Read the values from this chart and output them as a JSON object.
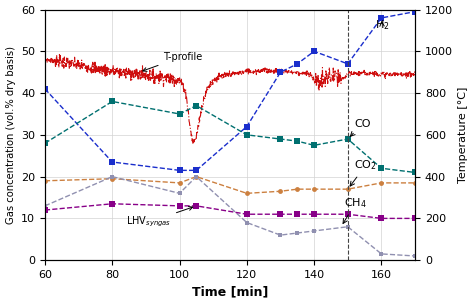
{
  "xlim": [
    60,
    170
  ],
  "ylim_left": [
    0,
    60
  ],
  "ylim_right": [
    0,
    1200
  ],
  "xlabel": "Time [min]",
  "ylabel_left": "Gas concentration (vol.% dry basis)",
  "ylabel_right": "Temperature [°C]",
  "xticks": [
    60,
    80,
    100,
    120,
    140,
    160
  ],
  "yticks_left": [
    0,
    10,
    20,
    30,
    40,
    50,
    60
  ],
  "yticks_right": [
    0,
    200,
    400,
    600,
    800,
    1000,
    1200
  ],
  "H2_x": [
    60,
    80,
    100,
    105,
    120,
    130,
    135,
    140,
    150,
    160,
    170
  ],
  "H2_y": [
    41,
    23.5,
    21.5,
    21.5,
    32,
    45,
    47,
    50,
    47,
    58,
    59.5
  ],
  "H2_color": "#1a2ecc",
  "CO_x": [
    60,
    80,
    100,
    105,
    120,
    130,
    135,
    140,
    150,
    160,
    170
  ],
  "CO_y": [
    28,
    38,
    35,
    37,
    30,
    29,
    28.5,
    27.5,
    29,
    22,
    21
  ],
  "CO_color": "#007070",
  "CO2_x": [
    60,
    80,
    100,
    105,
    120,
    130,
    135,
    140,
    150,
    160,
    170
  ],
  "CO2_y": [
    19,
    19.5,
    18.5,
    20,
    16,
    16.5,
    17,
    17,
    17,
    18.5,
    18.5
  ],
  "CO2_color": "#cc8040",
  "CH4_x": [
    60,
    80,
    100,
    105,
    120,
    130,
    135,
    140,
    150,
    160,
    170
  ],
  "CH4_y": [
    13,
    20,
    16,
    20,
    9,
    6,
    6.5,
    7,
    8,
    1.5,
    1.0
  ],
  "CH4_color": "#9090b0",
  "LHV_x": [
    60,
    80,
    100,
    105,
    120,
    130,
    135,
    140,
    150,
    160,
    170
  ],
  "LHV_y": [
    12,
    13.5,
    13,
    13,
    11,
    11,
    11,
    11,
    11,
    10,
    10
  ],
  "LHV_color": "#880088",
  "T_color": "#cc0000",
  "T_profile_base_x": [
    60,
    65,
    68,
    70,
    73,
    75,
    78,
    80,
    83,
    86,
    88,
    90,
    93,
    95,
    98,
    100,
    101,
    102,
    103,
    104,
    105,
    106,
    107,
    108,
    109,
    110,
    111,
    112,
    113,
    115,
    117,
    119,
    120,
    122,
    124,
    126,
    128,
    130,
    132,
    134,
    136,
    138,
    139,
    140,
    141,
    142,
    143,
    144,
    145,
    146,
    147,
    148,
    150,
    152,
    155,
    158,
    160,
    163,
    166,
    170
  ],
  "T_profile_base_y": [
    960,
    950,
    940,
    935,
    925,
    920,
    910,
    905,
    900,
    895,
    890,
    885,
    880,
    878,
    870,
    860,
    840,
    790,
    650,
    560,
    590,
    680,
    760,
    810,
    840,
    860,
    870,
    875,
    880,
    890,
    895,
    900,
    905,
    905,
    908,
    908,
    905,
    905,
    905,
    900,
    895,
    895,
    885,
    870,
    850,
    855,
    865,
    875,
    880,
    878,
    870,
    860,
    890,
    895,
    895,
    895,
    890,
    890,
    890,
    890
  ],
  "vline_x": 150,
  "vline_color": "#444444"
}
